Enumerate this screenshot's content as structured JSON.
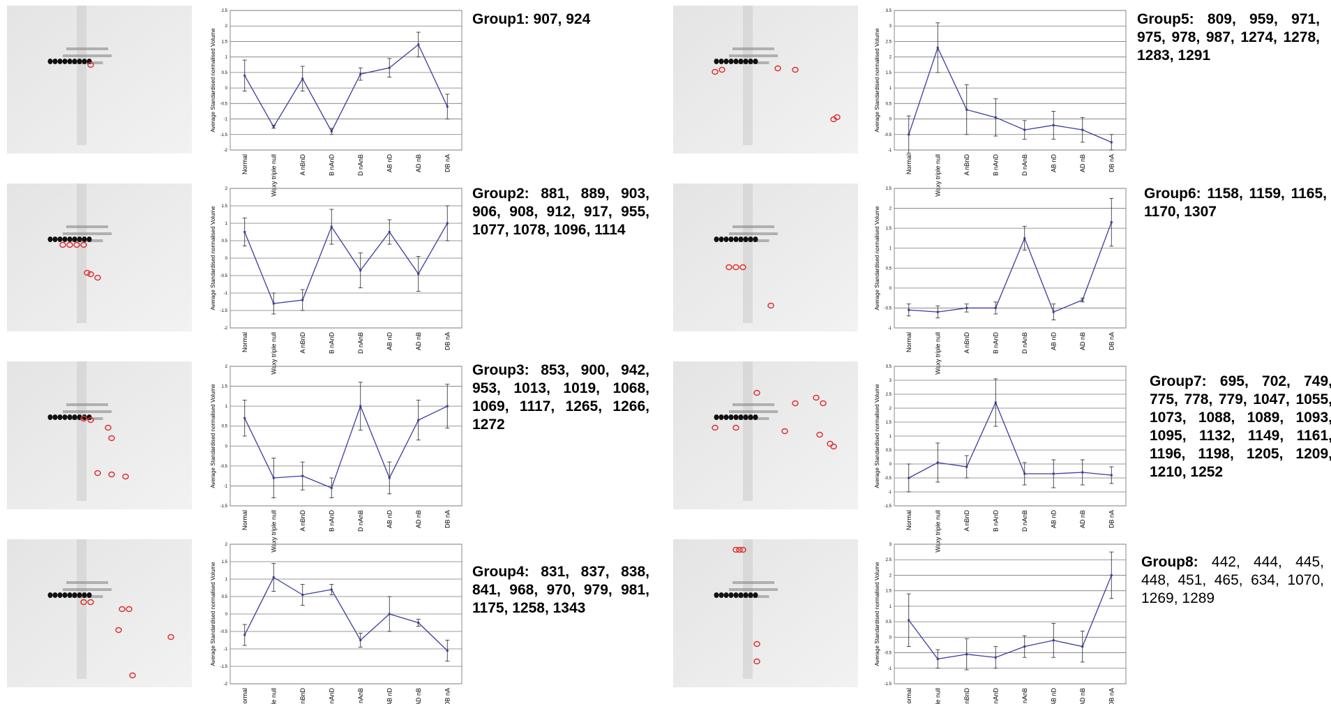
{
  "chart_data": [
    {
      "type": "line",
      "title": "Group1:",
      "annotation": "907, 924",
      "ylabel": "Average Standardised normalised Volume",
      "categories": [
        "Normal",
        "Waxy triple null",
        "A nBnD",
        "B nAnD",
        "D nAnB",
        "AB nD",
        "AD nB",
        "DB nA"
      ],
      "values": [
        0.4,
        -1.25,
        0.3,
        -1.4,
        0.45,
        0.65,
        1.4,
        -0.6
      ],
      "errors": [
        0.5,
        0.05,
        0.4,
        0.1,
        0.2,
        0.3,
        0.4,
        0.4
      ],
      "color": "#3b3b9e",
      "ylim": [
        -2,
        2.5
      ],
      "yticks": [
        -2,
        -1.5,
        -1,
        -0.5,
        0,
        0.5,
        1,
        1.5,
        2,
        2.5
      ],
      "grid": true
    },
    {
      "type": "line",
      "title": "Group2:",
      "annotation": "881, 889, 903, 906, 908, 912, 917, 955, 1077, 1078, 1096, 1114",
      "ylabel": "Average Standardised normalised Volume",
      "categories": [
        "Normal",
        "Waxy triple null",
        "A nBnD",
        "B nAnD",
        "D nAnB",
        "AB nD",
        "AD nB",
        "DB nA"
      ],
      "values": [
        0.75,
        -1.3,
        -1.2,
        0.9,
        -0.35,
        0.75,
        -0.45,
        1.0
      ],
      "errors": [
        0.4,
        0.3,
        0.3,
        0.5,
        0.5,
        0.35,
        0.5,
        0.5
      ],
      "color": "#3b3b9e",
      "ylim": [
        -2,
        2
      ],
      "yticks": [
        -2,
        -1.5,
        -1,
        -0.5,
        0,
        0.5,
        1,
        1.5,
        2
      ],
      "grid": true
    },
    {
      "type": "line",
      "title": "Group3:",
      "annotation": "853, 900, 942, 953, 1013, 1019, 1068, 1069, 1117, 1265, 1266, 1272",
      "ylabel": "Average Standardised normalised Volume",
      "categories": [
        "Normal",
        "Waxy triple null",
        "A nBnD",
        "B nAnD",
        "D nAnB",
        "AB nD",
        "AD nB",
        "DB nA"
      ],
      "values": [
        0.7,
        -0.8,
        -0.75,
        -1.05,
        1.0,
        -0.8,
        0.65,
        1.0
      ],
      "errors": [
        0.45,
        0.5,
        0.35,
        0.25,
        0.6,
        0.4,
        0.5,
        0.55
      ],
      "color": "#3b3b9e",
      "ylim": [
        -1.5,
        2
      ],
      "yticks": [
        -1.5,
        -1,
        -0.5,
        0,
        0.5,
        1,
        1.5,
        2
      ],
      "grid": true
    },
    {
      "type": "line",
      "title": "Group4:",
      "annotation": "831, 837, 838, 841, 968, 970, 979, 981, 1175, 1258, 1343",
      "ylabel": "Average Standardised normalised Volume",
      "categories": [
        "Normal",
        "Waxy triple null",
        "A nBnD",
        "B nAnD",
        "D nAnB",
        "AB nD",
        "AD nB",
        "DB nA"
      ],
      "values": [
        -0.6,
        1.05,
        0.55,
        0.7,
        -0.75,
        0.0,
        -0.25,
        -1.05
      ],
      "errors": [
        0.3,
        0.4,
        0.3,
        0.15,
        0.2,
        0.5,
        0.1,
        0.3
      ],
      "color": "#3b3b9e",
      "ylim": [
        -2,
        2
      ],
      "yticks": [
        -2,
        -1.5,
        -1,
        -0.5,
        0,
        0.5,
        1,
        1.5,
        2
      ],
      "grid": true
    },
    {
      "type": "line",
      "title": "Group5:",
      "annotation": "809, 959, 971, 975, 978, 987, 1274, 1278, 1283, 1291",
      "ylabel": "Average Standardised normalised Volume",
      "categories": [
        "Normal",
        "Waxy triple null",
        "A nBnD",
        "B nAnD",
        "D nAnB",
        "AB nD",
        "AD nB",
        "DB nA"
      ],
      "values": [
        -0.5,
        2.3,
        0.3,
        0.05,
        -0.35,
        -0.2,
        -0.35,
        -0.75
      ],
      "errors": [
        0.6,
        0.8,
        0.8,
        0.6,
        0.3,
        0.45,
        0.4,
        0.25
      ],
      "color": "#3b3b9e",
      "ylim": [
        -1,
        3.5
      ],
      "yticks": [
        -1,
        -0.5,
        0,
        0.5,
        1,
        1.5,
        2,
        2.5,
        3,
        3.5
      ],
      "grid": true
    },
    {
      "type": "line",
      "title": "Group6:",
      "annotation": "1158, 1159, 1165, 1170, 1307",
      "ylabel": "Average Standardised normalised Volume",
      "categories": [
        "Normal",
        "Waxy triple null",
        "A nBnD",
        "B nAnD",
        "D nAnB",
        "AB nD",
        "AD nB",
        "DB nA"
      ],
      "values": [
        -0.55,
        -0.6,
        -0.5,
        -0.5,
        1.25,
        -0.6,
        -0.3,
        1.65
      ],
      "errors": [
        0.15,
        0.15,
        0.1,
        0.15,
        0.3,
        0.2,
        0.05,
        0.6
      ],
      "color": "#3b3b9e",
      "ylim": [
        -1,
        2.5
      ],
      "yticks": [
        -1,
        -0.5,
        0,
        0.5,
        1,
        1.5,
        2,
        2.5
      ],
      "grid": true
    },
    {
      "type": "line",
      "title": "Group7:",
      "annotation": "695, 702, 749, 775, 778, 779, 1047, 1055, 1073, 1088, 1089, 1093, 1095, 1132, 1149, 1161, 1196, 1198, 1205, 1209, 1210, 1252",
      "ylabel": "Average Standardised normalised Volume",
      "categories": [
        "Normal",
        "Waxy triple null",
        "A nBnD",
        "B nAnD",
        "D nAnB",
        "AB nD",
        "AD nB",
        "DB nA"
      ],
      "values": [
        -0.5,
        0.05,
        -0.1,
        2.2,
        -0.35,
        -0.35,
        -0.3,
        -0.4
      ],
      "errors": [
        0.5,
        0.7,
        0.4,
        0.85,
        0.4,
        0.5,
        0.45,
        0.3
      ],
      "color": "#3b3b9e",
      "ylim": [
        -1.5,
        3.5
      ],
      "yticks": [
        -1.5,
        -1,
        -0.5,
        0,
        0.5,
        1,
        1.5,
        2,
        2.5,
        3,
        3.5
      ],
      "grid": true
    },
    {
      "type": "line",
      "title": "Group8:",
      "annotation": "442, 444, 445, 448, 451, 465, 634, 1070, 1269, 1289",
      "ylabel": "Average Standardised normalised Volume",
      "categories": [
        "Normal",
        "Waxy triple null",
        "A nBnD",
        "B nAnD",
        "D nAnB",
        "AB nD",
        "AD nB",
        "DB nA"
      ],
      "values": [
        0.55,
        -0.7,
        -0.55,
        -0.65,
        -0.3,
        -0.1,
        -0.3,
        2.0
      ],
      "errors": [
        0.85,
        0.3,
        0.5,
        0.35,
        0.35,
        0.55,
        0.5,
        0.75
      ],
      "color": "#3b3b9e",
      "ylim": [
        -1.5,
        3
      ],
      "yticks": [
        -1.5,
        -1,
        -0.5,
        0,
        0.5,
        1,
        1.5,
        2,
        2.5,
        3
      ],
      "grid": true
    }
  ]
}
